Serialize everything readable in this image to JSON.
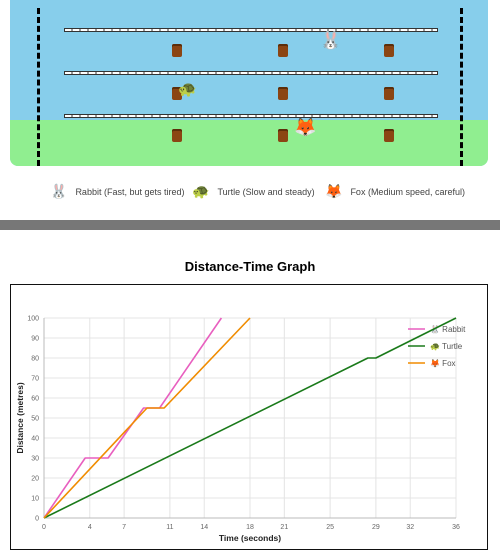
{
  "race": {
    "runners": [
      {
        "name": "rabbit",
        "icon": "🐰"
      },
      {
        "name": "turtle",
        "icon": "🐢"
      },
      {
        "name": "fox",
        "icon": "🦊"
      }
    ]
  },
  "legend": [
    {
      "icon": "🐰",
      "label": "Rabbit (Fast, but gets tired)"
    },
    {
      "icon": "🐢",
      "label": "Turtle (Slow and steady)"
    },
    {
      "icon": "🦊",
      "label": "Fox (Medium speed, careful)"
    }
  ],
  "colors": {
    "sky": "#87ceeb",
    "grass": "#90ee90",
    "stump": "#8b4513",
    "rabbit": "#e85fbf",
    "turtle": "#1a7a1a",
    "fox": "#f08c00"
  },
  "chart_title": "Distance-Time Graph",
  "chart_data": {
    "type": "line",
    "title": "Distance-Time Graph",
    "xlabel": "Time (seconds)",
    "ylabel": "Distance (metres)",
    "xlim": [
      0,
      36
    ],
    "ylim": [
      0,
      100
    ],
    "xticks": [
      0,
      4,
      7,
      11,
      14,
      18,
      21,
      25,
      29,
      32,
      36
    ],
    "yticks": [
      0,
      10,
      20,
      30,
      40,
      50,
      60,
      70,
      80,
      90,
      100
    ],
    "grid": true,
    "legend_position": "top-right",
    "series": [
      {
        "name": "Rabbit",
        "icon": "🐰",
        "color": "#e85fbf",
        "x": [
          0,
          3.6,
          5.6,
          8.7,
          10.1,
          15.5
        ],
        "y": [
          0,
          30,
          30,
          55,
          55,
          100
        ]
      },
      {
        "name": "Turtle",
        "icon": "🐢",
        "color": "#1a7a1a",
        "x": [
          0,
          28.3,
          29,
          36
        ],
        "y": [
          0,
          80,
          80,
          100
        ]
      },
      {
        "name": "Fox",
        "icon": "🦊",
        "color": "#f08c00",
        "x": [
          0,
          9,
          10.5,
          18
        ],
        "y": [
          0,
          55,
          55,
          100
        ]
      }
    ]
  }
}
